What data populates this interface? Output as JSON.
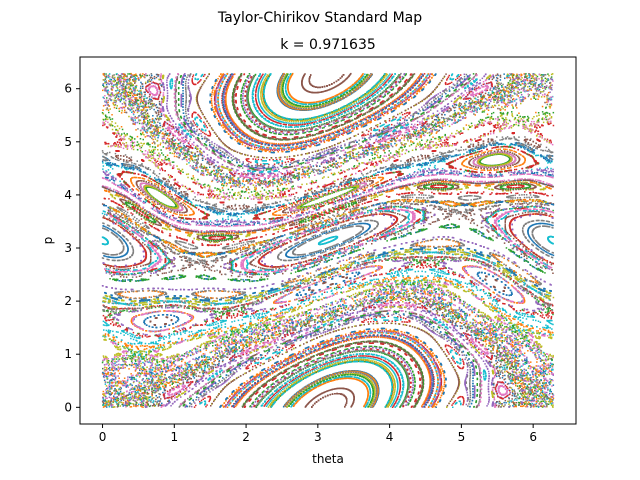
{
  "figure": {
    "suptitle": "Taylor-Chirikov Standard Map"
  },
  "chart_data": {
    "type": "scatter",
    "title": "k = 0.971635",
    "xlabel": "theta",
    "ylabel": "p",
    "k": 0.971635,
    "xlim": [
      -0.314,
      6.597
    ],
    "ylim": [
      -0.314,
      6.597
    ],
    "xticks": [
      0,
      1,
      2,
      3,
      4,
      5,
      6
    ],
    "yticks": [
      0,
      1,
      2,
      3,
      4,
      5,
      6
    ],
    "grid": false,
    "legend": "none",
    "marker_size": 1.5,
    "orbit_count": 180,
    "iterations_per_orbit": 260,
    "series_colors": [
      "#1f77b4",
      "#ff7f0e",
      "#2ca02c",
      "#d62728",
      "#9467bd",
      "#8c564b",
      "#e377c2",
      "#7f7f7f",
      "#bcbd22",
      "#17becf"
    ]
  }
}
